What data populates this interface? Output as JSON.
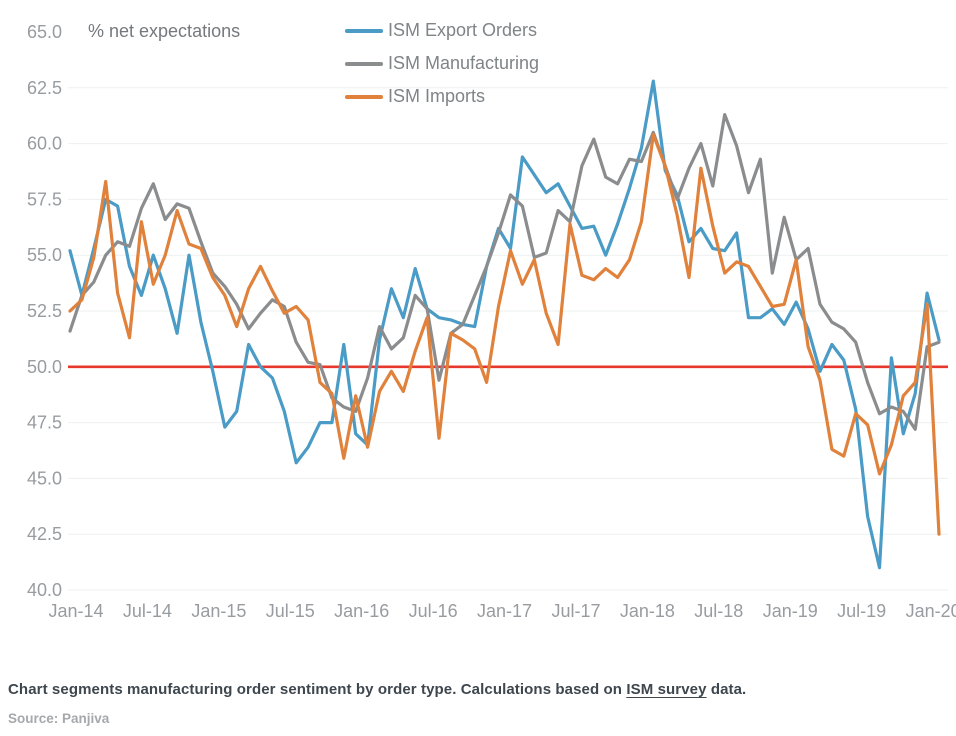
{
  "legend": {
    "items": [
      {
        "label": "ISM Export Orders",
        "color": "#4a9bc6"
      },
      {
        "label": "ISM Manufacturing",
        "color": "#8a8c8e"
      },
      {
        "label": "ISM Imports",
        "color": "#e0813c"
      }
    ]
  },
  "caption": {
    "text_before_link": "Chart segments manufacturing order sentiment by order type. Calculations based on ",
    "link_text": "ISM survey",
    "text_after_link": " data."
  },
  "source": "Source: Panjiva",
  "chart_data": {
    "type": "line",
    "title": "",
    "ylabel": "% net expectations",
    "xlabel": "",
    "ylim": [
      40.0,
      65.0
    ],
    "y_tick_step": 2.5,
    "grid": true,
    "legend_position": "top",
    "reference_line": {
      "value": 50.0,
      "color": "#e8382d"
    },
    "x_tick_every": 6,
    "months": [
      "Jan-14",
      "Feb-14",
      "Mar-14",
      "Apr-14",
      "May-14",
      "Jun-14",
      "Jul-14",
      "Aug-14",
      "Sep-14",
      "Oct-14",
      "Nov-14",
      "Dec-14",
      "Jan-15",
      "Feb-15",
      "Mar-15",
      "Apr-15",
      "May-15",
      "Jun-15",
      "Jul-15",
      "Aug-15",
      "Sep-15",
      "Oct-15",
      "Nov-15",
      "Dec-15",
      "Jan-16",
      "Feb-16",
      "Mar-16",
      "Apr-16",
      "May-16",
      "Jun-16",
      "Jul-16",
      "Aug-16",
      "Sep-16",
      "Oct-16",
      "Nov-16",
      "Dec-16",
      "Jan-17",
      "Feb-17",
      "Mar-17",
      "Apr-17",
      "May-17",
      "Jun-17",
      "Jul-17",
      "Aug-17",
      "Sep-17",
      "Oct-17",
      "Nov-17",
      "Dec-17",
      "Jan-18",
      "Feb-18",
      "Mar-18",
      "Apr-18",
      "May-18",
      "Jun-18",
      "Jul-18",
      "Aug-18",
      "Sep-18",
      "Oct-18",
      "Nov-18",
      "Dec-18",
      "Jan-19",
      "Feb-19",
      "Mar-19",
      "Apr-19",
      "May-19",
      "Jun-19",
      "Jul-19",
      "Aug-19",
      "Sep-19",
      "Oct-19",
      "Nov-19",
      "Dec-19",
      "Jan-20",
      "Feb-20"
    ],
    "series": [
      {
        "name": "ISM Export Orders",
        "color": "#4a9bc6",
        "values": [
          55.2,
          53.2,
          55.3,
          57.5,
          57.2,
          54.5,
          53.2,
          55.0,
          53.5,
          51.5,
          55.0,
          52.0,
          49.8,
          47.3,
          48.0,
          51.0,
          50.0,
          49.5,
          48.0,
          45.7,
          46.4,
          47.5,
          47.5,
          51.0,
          47.0,
          46.5,
          51.2,
          53.5,
          52.2,
          54.4,
          52.6,
          52.2,
          52.1,
          51.9,
          51.8,
          54.5,
          56.2,
          55.3,
          59.4,
          58.6,
          57.8,
          58.2,
          57.2,
          56.2,
          56.3,
          55.0,
          56.4,
          58.0,
          59.8,
          62.8,
          58.8,
          57.7,
          55.6,
          56.2,
          55.3,
          55.2,
          56.0,
          52.2,
          52.2,
          52.6,
          51.9,
          52.9,
          51.7,
          49.8,
          51.0,
          50.3,
          48.1,
          43.3,
          41.0,
          50.4,
          47.0,
          48.8,
          53.3,
          51.2
        ]
      },
      {
        "name": "ISM Manufacturing",
        "color": "#8a8c8e",
        "values": [
          51.6,
          53.2,
          53.8,
          55.0,
          55.6,
          55.4,
          57.1,
          58.2,
          56.6,
          57.3,
          57.1,
          55.6,
          54.2,
          53.6,
          52.8,
          51.7,
          52.4,
          53.0,
          52.7,
          51.1,
          50.2,
          50.1,
          48.6,
          48.2,
          48.0,
          49.5,
          51.8,
          50.8,
          51.3,
          53.2,
          52.6,
          49.4,
          51.5,
          51.9,
          53.2,
          54.5,
          56.0,
          57.7,
          57.2,
          54.9,
          55.1,
          57.0,
          56.5,
          59.0,
          60.2,
          58.5,
          58.2,
          59.3,
          59.2,
          60.5,
          59.0,
          57.5,
          58.9,
          60.0,
          58.1,
          61.3,
          59.9,
          57.8,
          59.3,
          54.2,
          56.7,
          54.8,
          55.3,
          52.8,
          52.0,
          51.7,
          51.1,
          49.3,
          47.9,
          48.2,
          48.0,
          47.2,
          50.9,
          51.1
        ]
      },
      {
        "name": "ISM Imports",
        "color": "#e0813c",
        "values": [
          52.5,
          53.0,
          54.9,
          58.3,
          53.3,
          51.3,
          56.5,
          53.7,
          55.0,
          57.0,
          55.5,
          55.3,
          54.0,
          53.2,
          51.8,
          53.5,
          54.5,
          53.4,
          52.4,
          52.7,
          52.1,
          49.3,
          48.8,
          45.9,
          48.7,
          46.4,
          48.9,
          49.8,
          48.9,
          50.7,
          52.2,
          46.8,
          51.5,
          51.2,
          50.8,
          49.3,
          52.7,
          55.2,
          53.7,
          54.8,
          52.4,
          51.0,
          56.4,
          54.1,
          53.9,
          54.4,
          54.0,
          54.8,
          56.5,
          60.4,
          59.0,
          56.8,
          54.0,
          58.9,
          56.3,
          54.2,
          54.7,
          54.5,
          53.6,
          52.7,
          52.8,
          54.8,
          50.9,
          49.4,
          46.3,
          46.0,
          47.9,
          47.4,
          45.2,
          46.5,
          48.7,
          49.3,
          52.8,
          42.5
        ]
      }
    ]
  }
}
